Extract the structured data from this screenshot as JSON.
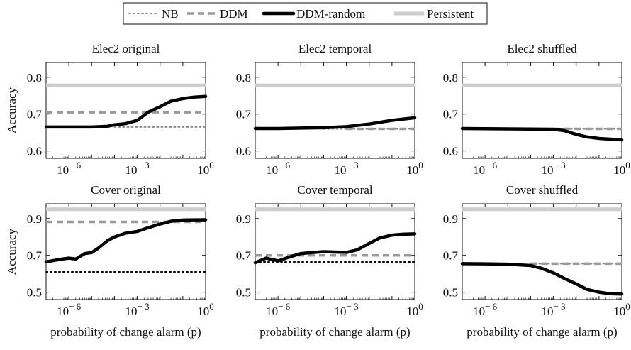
{
  "legend": {
    "placement": "top-center",
    "entries": [
      {
        "label": "NB",
        "style": "dotted",
        "color": "#888888"
      },
      {
        "label": "DDM",
        "style": "dashed",
        "color": "#999999"
      },
      {
        "label": "DDM-random",
        "style": "solid",
        "color": "#000000"
      },
      {
        "label": "Persistent",
        "style": "solid",
        "color": "#cccccc"
      }
    ]
  },
  "chart_data": [
    {
      "type": "line",
      "title": "Elec2 original",
      "ylabel": "Accuracy",
      "xlabel": "",
      "xscale": "log",
      "xlim": [
        1e-07,
        1
      ],
      "ylim": [
        0.58,
        0.84
      ],
      "yticks": [
        0.6,
        0.7,
        0.8
      ],
      "ytick_labels": [
        "0.6",
        "0.7",
        "0.8"
      ],
      "xtick_labels": [
        {
          "base": "10",
          "exp": "− 6",
          "at": 1e-06
        },
        {
          "base": "10",
          "exp": "− 3",
          "at": 0.001
        },
        {
          "base": "10",
          "exp": "0",
          "at": 1
        }
      ],
      "series": [
        {
          "name": "Persistent",
          "x": [
            1e-07,
            1
          ],
          "y": [
            0.778,
            0.778
          ]
        },
        {
          "name": "DDM",
          "x": [
            1e-07,
            1
          ],
          "y": [
            0.705,
            0.705
          ]
        },
        {
          "name": "NB",
          "x": [
            0.0001,
            1
          ],
          "y": [
            0.665,
            0.665
          ]
        },
        {
          "name": "DDM-random",
          "x": [
            1e-07,
            1e-06,
            1e-05,
            5e-05,
            0.0001,
            0.0003,
            0.001,
            0.003,
            0.01,
            0.03,
            0.1,
            0.3,
            1
          ],
          "y": [
            0.665,
            0.665,
            0.665,
            0.667,
            0.671,
            0.674,
            0.683,
            0.705,
            0.72,
            0.735,
            0.742,
            0.746,
            0.748
          ]
        }
      ]
    },
    {
      "type": "line",
      "title": "Elec2 temporal",
      "ylabel": "",
      "xlabel": "",
      "xscale": "log",
      "xlim": [
        1e-07,
        1
      ],
      "ylim": [
        0.58,
        0.84
      ],
      "yticks": [
        0.6,
        0.7,
        0.8
      ],
      "ytick_labels": [
        "0.6",
        "0.7",
        "0.8"
      ],
      "xtick_labels": [
        {
          "base": "10",
          "exp": "− 6",
          "at": 1e-06
        },
        {
          "base": "10",
          "exp": "− 3",
          "at": 0.001
        },
        {
          "base": "10",
          "exp": "0",
          "at": 1
        }
      ],
      "series": [
        {
          "name": "Persistent",
          "x": [
            1e-07,
            1
          ],
          "y": [
            0.778,
            0.778
          ]
        },
        {
          "name": "DDM",
          "x": [
            0.001,
            1
          ],
          "y": [
            0.66,
            0.66
          ]
        },
        {
          "name": "NB",
          "x": [
            0.0001,
            1
          ],
          "y": [
            0.66,
            0.66
          ]
        },
        {
          "name": "DDM-random",
          "x": [
            1e-07,
            1e-06,
            1e-05,
            0.0001,
            0.001,
            0.01,
            0.1,
            1
          ],
          "y": [
            0.661,
            0.661,
            0.662,
            0.663,
            0.666,
            0.673,
            0.683,
            0.69
          ]
        }
      ]
    },
    {
      "type": "line",
      "title": "Elec2 shuffled",
      "ylabel": "",
      "xlabel": "",
      "xscale": "log",
      "xlim": [
        1e-07,
        1
      ],
      "ylim": [
        0.58,
        0.84
      ],
      "yticks": [
        0.6,
        0.7,
        0.8
      ],
      "ytick_labels": [
        "0.6",
        "0.7",
        "0.8"
      ],
      "xtick_labels": [
        {
          "base": "10",
          "exp": "− 6",
          "at": 1e-06
        },
        {
          "base": "10",
          "exp": "− 3",
          "at": 0.001
        },
        {
          "base": "10",
          "exp": "0",
          "at": 1
        }
      ],
      "series": [
        {
          "name": "Persistent",
          "x": [
            1e-07,
            1
          ],
          "y": [
            0.778,
            0.778
          ]
        },
        {
          "name": "DDM",
          "x": [
            0.001,
            1
          ],
          "y": [
            0.66,
            0.66
          ]
        },
        {
          "name": "NB",
          "x": [
            0.001,
            1
          ],
          "y": [
            0.66,
            0.66
          ]
        },
        {
          "name": "DDM-random",
          "x": [
            1e-07,
            1e-05,
            0.001,
            0.003,
            0.01,
            0.03,
            0.1,
            1
          ],
          "y": [
            0.661,
            0.66,
            0.659,
            0.655,
            0.645,
            0.638,
            0.634,
            0.63
          ]
        }
      ]
    },
    {
      "type": "line",
      "title": "Cover original",
      "ylabel": "Accuracy",
      "xlabel": "probability of change alarm (p)",
      "xscale": "log",
      "xlim": [
        1e-07,
        1
      ],
      "ylim": [
        0.46,
        0.98
      ],
      "yticks": [
        0.5,
        0.7,
        0.9
      ],
      "ytick_labels": [
        "0.5",
        "0.7",
        "0.9"
      ],
      "xtick_labels": [
        {
          "base": "10",
          "exp": "− 6",
          "at": 1e-06
        },
        {
          "base": "10",
          "exp": "− 3",
          "at": 0.001
        },
        {
          "base": "10",
          "exp": "0",
          "at": 1
        }
      ],
      "series": [
        {
          "name": "Persistent",
          "x": [
            1e-07,
            1
          ],
          "y": [
            0.95,
            0.95
          ]
        },
        {
          "name": "DDM",
          "x": [
            1e-07,
            1
          ],
          "y": [
            0.882,
            0.882
          ]
        },
        {
          "name": "NB",
          "x": [
            1e-07,
            1
          ],
          "y": [
            0.61,
            0.61
          ]
        },
        {
          "name": "DDM-random",
          "x": [
            1e-07,
            5e-07,
            1e-06,
            2e-06,
            5e-06,
            1e-05,
            2e-05,
            5e-05,
            0.0001,
            0.0003,
            0.001,
            0.003,
            0.01,
            0.03,
            0.1,
            0.3,
            1
          ],
          "y": [
            0.665,
            0.68,
            0.685,
            0.68,
            0.71,
            0.715,
            0.74,
            0.78,
            0.8,
            0.82,
            0.83,
            0.85,
            0.87,
            0.885,
            0.892,
            0.893,
            0.893
          ]
        }
      ]
    },
    {
      "type": "line",
      "title": "Cover temporal",
      "ylabel": "",
      "xlabel": "probability of change alarm (p)",
      "xscale": "log",
      "xlim": [
        1e-07,
        1
      ],
      "ylim": [
        0.46,
        0.98
      ],
      "yticks": [
        0.5,
        0.7,
        0.9
      ],
      "ytick_labels": [
        "0.5",
        "0.7",
        "0.9"
      ],
      "xtick_labels": [
        {
          "base": "10",
          "exp": "− 6",
          "at": 1e-06
        },
        {
          "base": "10",
          "exp": "− 3",
          "at": 0.001
        },
        {
          "base": "10",
          "exp": "0",
          "at": 1
        }
      ],
      "series": [
        {
          "name": "Persistent",
          "x": [
            1e-07,
            1
          ],
          "y": [
            0.95,
            0.95
          ]
        },
        {
          "name": "DDM",
          "x": [
            1e-07,
            1
          ],
          "y": [
            0.7,
            0.7
          ]
        },
        {
          "name": "NB",
          "x": [
            1e-07,
            1
          ],
          "y": [
            0.664,
            0.664
          ]
        },
        {
          "name": "DDM-random",
          "x": [
            1e-07,
            3e-07,
            1e-06,
            3e-06,
            1e-05,
            3e-05,
            0.0001,
            0.0003,
            0.001,
            0.003,
            0.01,
            0.03,
            0.1,
            0.3,
            1
          ],
          "y": [
            0.66,
            0.685,
            0.67,
            0.69,
            0.71,
            0.715,
            0.72,
            0.718,
            0.716,
            0.73,
            0.765,
            0.795,
            0.81,
            0.815,
            0.817
          ]
        }
      ]
    },
    {
      "type": "line",
      "title": "Cover shuffled",
      "ylabel": "",
      "xlabel": "probability of change alarm (p)",
      "xscale": "log",
      "xlim": [
        1e-07,
        1
      ],
      "ylim": [
        0.46,
        0.98
      ],
      "yticks": [
        0.5,
        0.7,
        0.9
      ],
      "ytick_labels": [
        "0.5",
        "0.7",
        "0.9"
      ],
      "xtick_labels": [
        {
          "base": "10",
          "exp": "− 6",
          "at": 1e-06
        },
        {
          "base": "10",
          "exp": "− 3",
          "at": 0.001
        },
        {
          "base": "10",
          "exp": "0",
          "at": 1
        }
      ],
      "series": [
        {
          "name": "Persistent",
          "x": [
            1e-07,
            1
          ],
          "y": [
            0.95,
            0.95
          ]
        },
        {
          "name": "DDM",
          "x": [
            0.0001,
            1
          ],
          "y": [
            0.655,
            0.655
          ]
        },
        {
          "name": "NB",
          "x": [
            0.0001,
            1
          ],
          "y": [
            0.655,
            0.655
          ]
        },
        {
          "name": "DDM-random",
          "x": [
            1e-07,
            1e-06,
            1e-05,
            0.0001,
            0.0003,
            0.001,
            0.003,
            0.01,
            0.03,
            0.1,
            0.3,
            1
          ],
          "y": [
            0.655,
            0.654,
            0.652,
            0.645,
            0.63,
            0.605,
            0.575,
            0.545,
            0.515,
            0.5,
            0.492,
            0.49
          ]
        }
      ]
    }
  ]
}
